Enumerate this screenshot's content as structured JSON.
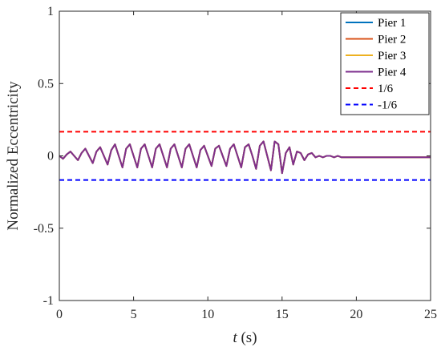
{
  "chart_data": {
    "type": "line",
    "xlabel_var": "t",
    "xlabel_unit": " (s)",
    "ylabel": "Normalized Eccentricity",
    "xlim": [
      0,
      25
    ],
    "ylim": [
      -1,
      1
    ],
    "x_ticks": [
      0,
      5,
      10,
      15,
      20,
      25
    ],
    "y_ticks": [
      -1,
      -0.5,
      0,
      0.5,
      1
    ],
    "x_tick_labels": [
      "0",
      "5",
      "10",
      "15",
      "20",
      "25"
    ],
    "y_tick_labels": [
      "-1",
      "-0.5",
      "0",
      "0.5",
      "1"
    ],
    "grid": false,
    "legend_position": "top-right",
    "series": [
      {
        "name": "Pier 1",
        "color": "#0072BD",
        "style": "solid",
        "x": [
          0,
          0.25,
          0.5,
          0.75,
          1,
          1.25,
          1.5,
          1.75,
          2,
          2.25,
          2.5,
          2.75,
          3,
          3.25,
          3.5,
          3.75,
          4,
          4.25,
          4.5,
          4.75,
          5,
          5.25,
          5.5,
          5.75,
          6,
          6.25,
          6.5,
          6.75,
          7,
          7.25,
          7.5,
          7.75,
          8,
          8.25,
          8.5,
          8.75,
          9,
          9.25,
          9.5,
          9.75,
          10,
          10.25,
          10.5,
          10.75,
          11,
          11.25,
          11.5,
          11.75,
          12,
          12.25,
          12.5,
          12.75,
          13,
          13.25,
          13.5,
          13.75,
          14,
          14.25,
          14.5,
          14.75,
          15,
          15.25,
          15.5,
          15.75,
          16,
          16.25,
          16.5,
          16.75,
          17,
          17.25,
          17.5,
          17.75,
          18,
          18.25,
          18.5,
          18.75,
          19,
          19.25,
          19.5,
          19.75,
          20,
          20.25,
          20.5,
          20.75,
          21,
          21.25,
          21.5,
          21.75,
          22,
          22.25,
          22.5,
          22.75,
          23,
          23.25,
          23.5,
          23.75,
          24,
          24.25,
          24.5,
          24.75,
          25
        ],
        "y": [
          0,
          -0.02,
          0.01,
          0.03,
          0.0,
          -0.03,
          0.02,
          0.05,
          0.0,
          -0.05,
          0.03,
          0.06,
          0.0,
          -0.06,
          0.04,
          0.08,
          0.0,
          -0.08,
          0.05,
          0.08,
          0.0,
          -0.08,
          0.05,
          0.08,
          0.0,
          -0.08,
          0.05,
          0.08,
          0.0,
          -0.08,
          0.05,
          0.08,
          0.0,
          -0.08,
          0.05,
          0.08,
          0.0,
          -0.08,
          0.04,
          0.07,
          0.0,
          -0.07,
          0.05,
          0.07,
          0.0,
          -0.07,
          0.05,
          0.08,
          0.0,
          -0.08,
          0.06,
          0.08,
          0.0,
          -0.09,
          0.07,
          0.1,
          0.0,
          -0.1,
          0.1,
          0.08,
          -0.12,
          0.02,
          0.06,
          -0.06,
          0.03,
          0.02,
          -0.03,
          0.01,
          0.02,
          -0.01,
          0.0,
          -0.01,
          0.0,
          0.0,
          -0.01,
          0.0,
          -0.01,
          -0.01,
          -0.01,
          -0.01,
          -0.01,
          -0.01,
          -0.01,
          -0.01,
          -0.01,
          -0.01,
          -0.01,
          -0.01,
          -0.01,
          -0.01,
          -0.01,
          -0.01,
          -0.01,
          -0.01,
          -0.01,
          -0.01,
          -0.01,
          -0.01,
          -0.01,
          -0.01,
          -0.01
        ]
      },
      {
        "name": "Pier 2",
        "color": "#D95319",
        "style": "solid",
        "x": [
          0,
          0.25,
          0.5,
          0.75,
          1,
          1.25,
          1.5,
          1.75,
          2,
          2.25,
          2.5,
          2.75,
          3,
          3.25,
          3.5,
          3.75,
          4,
          4.25,
          4.5,
          4.75,
          5,
          5.25,
          5.5,
          5.75,
          6,
          6.25,
          6.5,
          6.75,
          7,
          7.25,
          7.5,
          7.75,
          8,
          8.25,
          8.5,
          8.75,
          9,
          9.25,
          9.5,
          9.75,
          10,
          10.25,
          10.5,
          10.75,
          11,
          11.25,
          11.5,
          11.75,
          12,
          12.25,
          12.5,
          12.75,
          13,
          13.25,
          13.5,
          13.75,
          14,
          14.25,
          14.5,
          14.75,
          15,
          15.25,
          15.5,
          15.75,
          16,
          16.25,
          16.5,
          16.75,
          17,
          17.25,
          17.5,
          17.75,
          18,
          18.25,
          18.5,
          18.75,
          19,
          19.25,
          19.5,
          19.75,
          20,
          20.25,
          20.5,
          20.75,
          21,
          21.25,
          21.5,
          21.75,
          22,
          22.25,
          22.5,
          22.75,
          23,
          23.25,
          23.5,
          23.75,
          24,
          24.25,
          24.5,
          24.75,
          25
        ],
        "y": [
          0,
          -0.02,
          0.01,
          0.03,
          0.0,
          -0.03,
          0.02,
          0.05,
          0.0,
          -0.05,
          0.03,
          0.06,
          0.0,
          -0.06,
          0.04,
          0.08,
          0.0,
          -0.08,
          0.05,
          0.08,
          0.0,
          -0.08,
          0.05,
          0.08,
          0.0,
          -0.08,
          0.05,
          0.08,
          0.0,
          -0.08,
          0.05,
          0.08,
          0.0,
          -0.08,
          0.05,
          0.08,
          0.0,
          -0.08,
          0.04,
          0.07,
          0.0,
          -0.07,
          0.05,
          0.07,
          0.0,
          -0.07,
          0.05,
          0.08,
          0.0,
          -0.08,
          0.06,
          0.08,
          0.0,
          -0.09,
          0.07,
          0.1,
          0.0,
          -0.1,
          0.1,
          0.08,
          -0.12,
          0.02,
          0.06,
          -0.06,
          0.03,
          0.02,
          -0.03,
          0.01,
          0.02,
          -0.01,
          0.0,
          -0.01,
          0.0,
          0.0,
          -0.01,
          0.0,
          -0.01,
          -0.01,
          -0.01,
          -0.01,
          -0.01,
          -0.01,
          -0.01,
          -0.01,
          -0.01,
          -0.01,
          -0.01,
          -0.01,
          -0.01,
          -0.01,
          -0.01,
          -0.01,
          -0.01,
          -0.01,
          -0.01,
          -0.01,
          -0.01,
          -0.01,
          -0.01,
          -0.01,
          -0.01
        ]
      },
      {
        "name": "Pier 3",
        "color": "#EDB120",
        "style": "solid",
        "x": [
          0,
          0.25,
          0.5,
          0.75,
          1,
          1.25,
          1.5,
          1.75,
          2,
          2.25,
          2.5,
          2.75,
          3,
          3.25,
          3.5,
          3.75,
          4,
          4.25,
          4.5,
          4.75,
          5,
          5.25,
          5.5,
          5.75,
          6,
          6.25,
          6.5,
          6.75,
          7,
          7.25,
          7.5,
          7.75,
          8,
          8.25,
          8.5,
          8.75,
          9,
          9.25,
          9.5,
          9.75,
          10,
          10.25,
          10.5,
          10.75,
          11,
          11.25,
          11.5,
          11.75,
          12,
          12.25,
          12.5,
          12.75,
          13,
          13.25,
          13.5,
          13.75,
          14,
          14.25,
          14.5,
          14.75,
          15,
          15.25,
          15.5,
          15.75,
          16,
          16.25,
          16.5,
          16.75,
          17,
          17.25,
          17.5,
          17.75,
          18,
          18.25,
          18.5,
          18.75,
          19,
          19.25,
          19.5,
          19.75,
          20,
          20.25,
          20.5,
          20.75,
          21,
          21.25,
          21.5,
          21.75,
          22,
          22.25,
          22.5,
          22.75,
          23,
          23.25,
          23.5,
          23.75,
          24,
          24.25,
          24.5,
          24.75,
          25
        ],
        "y": [
          0,
          -0.02,
          0.01,
          0.03,
          0.0,
          -0.03,
          0.02,
          0.05,
          0.0,
          -0.05,
          0.03,
          0.06,
          0.0,
          -0.06,
          0.04,
          0.08,
          0.0,
          -0.08,
          0.05,
          0.08,
          0.0,
          -0.08,
          0.05,
          0.08,
          0.0,
          -0.08,
          0.05,
          0.08,
          0.0,
          -0.08,
          0.05,
          0.08,
          0.0,
          -0.08,
          0.05,
          0.08,
          0.0,
          -0.08,
          0.04,
          0.07,
          0.0,
          -0.07,
          0.05,
          0.07,
          0.0,
          -0.07,
          0.05,
          0.08,
          0.0,
          -0.08,
          0.06,
          0.08,
          0.0,
          -0.09,
          0.07,
          0.1,
          0.0,
          -0.1,
          0.1,
          0.08,
          -0.12,
          0.02,
          0.06,
          -0.06,
          0.03,
          0.02,
          -0.03,
          0.01,
          0.02,
          -0.01,
          0.0,
          -0.01,
          0.0,
          0.0,
          -0.01,
          0.0,
          -0.01,
          -0.01,
          -0.01,
          -0.01,
          -0.01,
          -0.01,
          -0.01,
          -0.01,
          -0.01,
          -0.01,
          -0.01,
          -0.01,
          -0.01,
          -0.01,
          -0.01,
          -0.01,
          -0.01,
          -0.01,
          -0.01,
          -0.01,
          -0.01,
          -0.01,
          -0.01,
          -0.01,
          -0.01
        ]
      },
      {
        "name": "Pier 4",
        "color": "#7E2F8E",
        "style": "solid",
        "x": [
          0,
          0.25,
          0.5,
          0.75,
          1,
          1.25,
          1.5,
          1.75,
          2,
          2.25,
          2.5,
          2.75,
          3,
          3.25,
          3.5,
          3.75,
          4,
          4.25,
          4.5,
          4.75,
          5,
          5.25,
          5.5,
          5.75,
          6,
          6.25,
          6.5,
          6.75,
          7,
          7.25,
          7.5,
          7.75,
          8,
          8.25,
          8.5,
          8.75,
          9,
          9.25,
          9.5,
          9.75,
          10,
          10.25,
          10.5,
          10.75,
          11,
          11.25,
          11.5,
          11.75,
          12,
          12.25,
          12.5,
          12.75,
          13,
          13.25,
          13.5,
          13.75,
          14,
          14.25,
          14.5,
          14.75,
          15,
          15.25,
          15.5,
          15.75,
          16,
          16.25,
          16.5,
          16.75,
          17,
          17.25,
          17.5,
          17.75,
          18,
          18.25,
          18.5,
          18.75,
          19,
          19.25,
          19.5,
          19.75,
          20,
          20.25,
          20.5,
          20.75,
          21,
          21.25,
          21.5,
          21.75,
          22,
          22.25,
          22.5,
          22.75,
          23,
          23.25,
          23.5,
          23.75,
          24,
          24.25,
          24.5,
          24.75,
          25
        ],
        "y": [
          0,
          -0.02,
          0.01,
          0.03,
          0.0,
          -0.03,
          0.02,
          0.05,
          0.0,
          -0.05,
          0.03,
          0.06,
          0.0,
          -0.06,
          0.04,
          0.08,
          0.0,
          -0.08,
          0.05,
          0.08,
          0.0,
          -0.08,
          0.05,
          0.08,
          0.0,
          -0.08,
          0.05,
          0.08,
          0.0,
          -0.08,
          0.05,
          0.08,
          0.0,
          -0.08,
          0.05,
          0.08,
          0.0,
          -0.08,
          0.04,
          0.07,
          0.0,
          -0.07,
          0.05,
          0.07,
          0.0,
          -0.07,
          0.05,
          0.08,
          0.0,
          -0.08,
          0.06,
          0.08,
          0.0,
          -0.09,
          0.07,
          0.1,
          0.0,
          -0.1,
          0.1,
          0.08,
          -0.12,
          0.02,
          0.06,
          -0.06,
          0.03,
          0.02,
          -0.03,
          0.01,
          0.02,
          -0.01,
          0.0,
          -0.01,
          0.0,
          0.0,
          -0.01,
          0.0,
          -0.01,
          -0.01,
          -0.01,
          -0.01,
          -0.01,
          -0.01,
          -0.01,
          -0.01,
          -0.01,
          -0.01,
          -0.01,
          -0.01,
          -0.01,
          -0.01,
          -0.01,
          -0.01,
          -0.01,
          -0.01,
          -0.01,
          -0.01,
          -0.01,
          -0.01,
          -0.01,
          -0.01,
          -0.01
        ]
      },
      {
        "name": "1/6",
        "color": "#FF0000",
        "style": "dashed",
        "x": [
          0,
          25
        ],
        "y": [
          0.1667,
          0.1667
        ]
      },
      {
        "name": "-1/6",
        "color": "#0000FF",
        "style": "dashed",
        "x": [
          0,
          25
        ],
        "y": [
          -0.1667,
          -0.1667
        ]
      }
    ]
  }
}
